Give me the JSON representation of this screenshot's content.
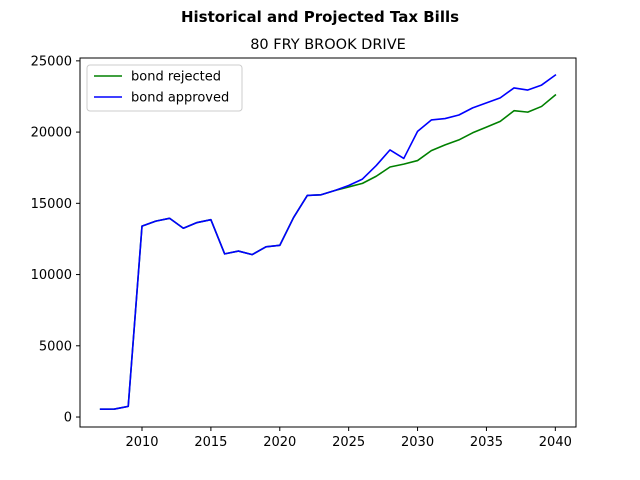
{
  "chart_data": {
    "type": "line",
    "suptitle": "Historical and Projected Tax Bills",
    "title": "80 FRY BROOK DRIVE",
    "xlabel": "",
    "ylabel": "",
    "xlim": [
      2005.5,
      2041.5
    ],
    "ylim": [
      -700,
      25200
    ],
    "xticks": [
      2010,
      2015,
      2020,
      2025,
      2030,
      2035,
      2040
    ],
    "yticks": [
      0,
      5000,
      10000,
      15000,
      20000,
      25000
    ],
    "grid": false,
    "legend_position": "top-left",
    "x": [
      2007,
      2008,
      2009,
      2010,
      2011,
      2012,
      2013,
      2014,
      2015,
      2016,
      2017,
      2018,
      2019,
      2020,
      2021,
      2022,
      2023,
      2024,
      2025,
      2026,
      2027,
      2028,
      2029,
      2030,
      2031,
      2032,
      2033,
      2034,
      2035,
      2036,
      2037,
      2038,
      2039,
      2040
    ],
    "series": [
      {
        "name": "bond rejected",
        "color": "#008000",
        "values": [
          550,
          560,
          750,
          13400,
          13750,
          13950,
          13250,
          13650,
          13850,
          11450,
          11650,
          11400,
          11950,
          12050,
          14000,
          15550,
          15600,
          15900,
          16150,
          16400,
          16900,
          17550,
          17750,
          18000,
          18700,
          19100,
          19450,
          19950,
          20350,
          20750,
          21500,
          21400,
          21800,
          22600
        ]
      },
      {
        "name": "bond approved",
        "color": "#0000ff",
        "values": [
          550,
          560,
          750,
          13400,
          13750,
          13950,
          13250,
          13650,
          13850,
          11450,
          11650,
          11400,
          11950,
          12050,
          14000,
          15550,
          15600,
          15900,
          16250,
          16700,
          17650,
          18750,
          18150,
          20050,
          20850,
          20950,
          21200,
          21700,
          22050,
          22400,
          23100,
          22950,
          23300,
          24000
        ]
      }
    ]
  }
}
